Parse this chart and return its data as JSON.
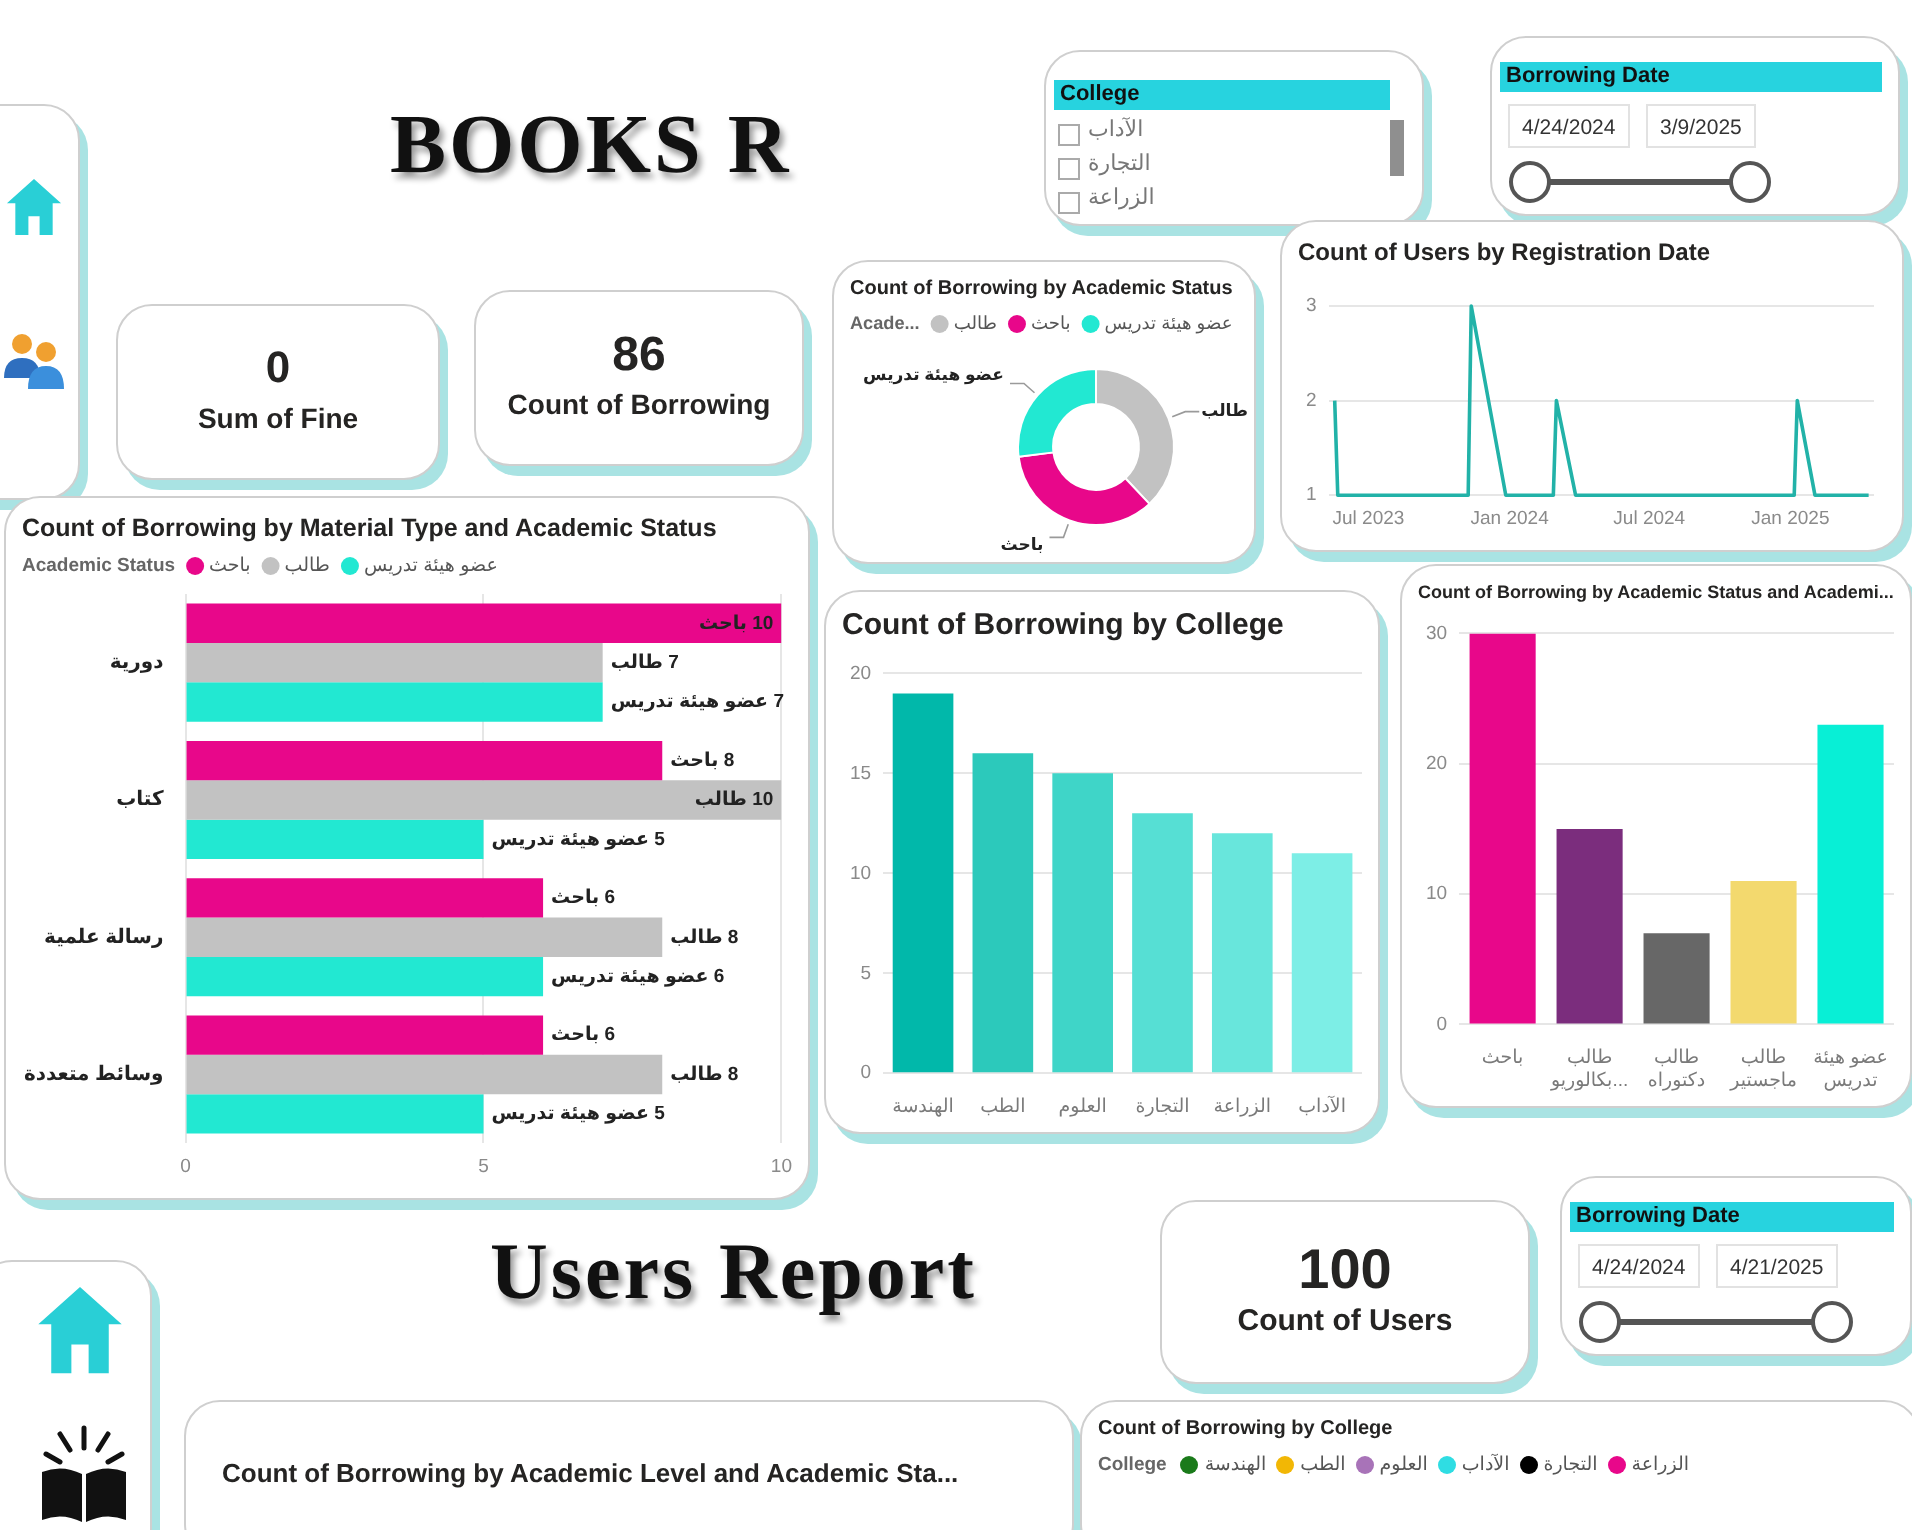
{
  "chart_data": [
    {
      "type": "other",
      "title": "BOOKS R"
    },
    {
      "type": "other",
      "title": "College",
      "categories": [
        "الآداب",
        "التجارة",
        "الزراعة"
      ]
    },
    {
      "type": "other",
      "title": "Borrowing Date",
      "annotations": [
        "4/24/2024",
        "3/9/2025"
      ]
    },
    {
      "type": "other",
      "title": "Sum of Fine",
      "annotations": [
        "0"
      ]
    },
    {
      "type": "other",
      "title": "Count of Borrowing",
      "annotations": [
        "86"
      ]
    },
    {
      "type": "donut",
      "title": "Count of Borrowing by Academic Status",
      "legend_title": "Acade...",
      "legend": "top left",
      "categories": [
        "طالب",
        "باحث",
        "عضو هيئة تدريس"
      ],
      "values": [
        38,
        35,
        27
      ],
      "colors": [
        "#c2c2c2",
        "#e8078a",
        "#22e8d2"
      ]
    },
    {
      "type": "line",
      "title": "Count of Users by Registration Date",
      "x": [
        "2023-05-18",
        "2023-05-22",
        "2023-11-08",
        "2023-11-12",
        "2023-12-27",
        "2024-02-27",
        "2024-03-02",
        "2024-03-27",
        "2025-01-06",
        "2025-01-10",
        "2025-02-02",
        "2025-04-13"
      ],
      "values": [
        2,
        1,
        1,
        3,
        1,
        1,
        2,
        1,
        1,
        2,
        1,
        1
      ],
      "color": "#22b2a8",
      "xlim": [
        "2023-05-10",
        "2025-04-20"
      ],
      "xticks": [
        {
          "value": "2023-07",
          "label": "Jul 2023"
        },
        {
          "value": "2024-01",
          "label": "Jan 2024"
        },
        {
          "value": "2024-07",
          "label": "Jul 2024"
        },
        {
          "value": "2025-01",
          "label": "Jan 2025"
        }
      ],
      "ylim": [
        1,
        3
      ],
      "yticks": [
        1,
        2,
        3
      ],
      "grid": "y"
    },
    {
      "type": "bar",
      "orientation": "horizontal",
      "title": "Count of Borrowing by Material Type and Academic Status",
      "legend_title": "Academic Status",
      "legend": "top left",
      "categories": [
        "دورية",
        "كتاب",
        "رسالة علمية",
        "وسائط متعددة"
      ],
      "series": [
        {
          "name": "باحث",
          "color": "#e8078a",
          "values": [
            10,
            8,
            6,
            6
          ],
          "value_labels": [
            "10 باحث",
            "8 باحث",
            "6 باحث",
            "6 باحث"
          ]
        },
        {
          "name": "طالب",
          "color": "#c2c2c2",
          "values": [
            7,
            10,
            8,
            8
          ],
          "value_labels": [
            "7 طالب",
            "10 طالب",
            "8 طالب",
            "8 طالب"
          ]
        },
        {
          "name": "عضو هيئة تدريس",
          "color": "#22e8d2",
          "values": [
            7,
            5,
            6,
            5
          ],
          "value_labels": [
            "7 عضو هيئة تدريس",
            "5 عضو هيئة تدريس",
            "6 عضو هيئة تدريس",
            "5 عضو هيئة تدريس"
          ]
        }
      ],
      "xlim": [
        0,
        10
      ],
      "xticks": [
        0,
        5,
        10
      ],
      "grid": "x"
    },
    {
      "type": "bar",
      "title": "Count of Borrowing by College",
      "categories": [
        "الهندسة",
        "الطب",
        "العلوم",
        "التجارة",
        "الزراعة",
        "الآداب"
      ],
      "values": [
        19,
        16,
        15,
        13,
        12,
        11
      ],
      "colors": [
        "#01b8aa",
        "#2cc9bb",
        "#3fd5c8",
        "#56dfd4",
        "#68e6dc",
        "#7deee6"
      ],
      "ylim": [
        0,
        20
      ],
      "yticks": [
        0,
        5,
        10,
        15,
        20
      ],
      "grid": "y"
    },
    {
      "type": "bar",
      "title": "Count of Borrowing by Academic Status and Academi...",
      "categories": [
        "باحث",
        "طالب بكالوريو...",
        "طالب دكتوراه",
        "طالب ماجستير",
        "عضو هيئة تدريس"
      ],
      "values": [
        30,
        15,
        7,
        11,
        23
      ],
      "colors": [
        "#e8078a",
        "#7b2d7d",
        "#676767",
        "#f3d96e",
        "#08efd6"
      ],
      "ylim": [
        0,
        30
      ],
      "yticks": [
        0,
        10,
        20,
        30
      ],
      "grid": "y"
    },
    {
      "type": "other",
      "title": "Users Report"
    },
    {
      "type": "other",
      "title": "Count of Users",
      "annotations": [
        "100"
      ]
    },
    {
      "type": "other",
      "title": "Borrowing Date",
      "annotations": [
        "4/24/2024",
        "4/21/2025"
      ]
    },
    {
      "type": "other",
      "title": "Count of Borrowing by Academic Level and Academic Sta..."
    },
    {
      "type": "other",
      "title": "Count of Borrowing by College",
      "legend_title": "College",
      "categories": [
        "الهندسة",
        "الطب",
        "العلوم",
        "الآداب",
        "التجارة",
        "الزراعة"
      ],
      "colors": [
        "#1a7a1a",
        "#f2b705",
        "#a873b8",
        "#2fdde3",
        "#000000",
        "#e8078a"
      ]
    }
  ]
}
